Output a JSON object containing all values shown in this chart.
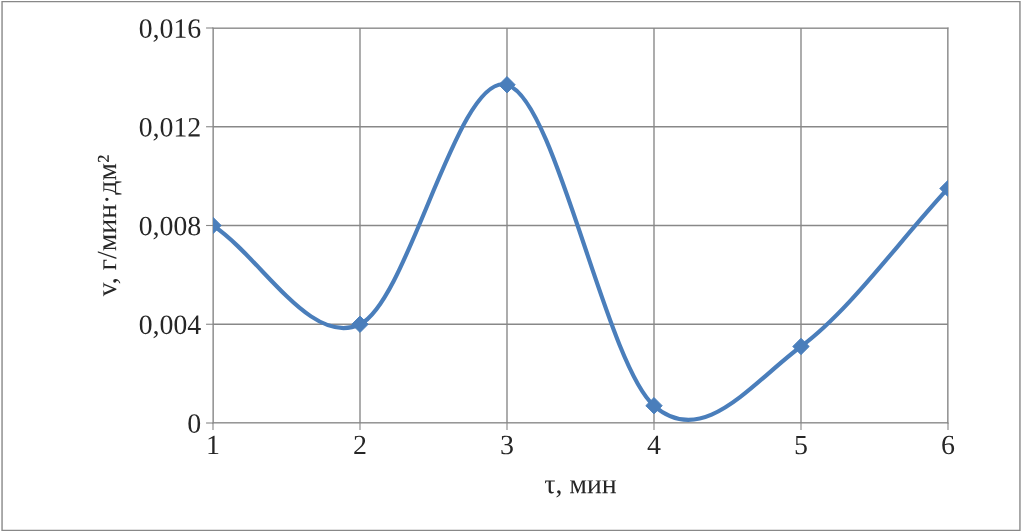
{
  "chart_data": {
    "type": "line",
    "xlabel": "τ, мин",
    "ylabel": "v, г/мин·дм²",
    "x": [
      1,
      2,
      3,
      4,
      5,
      6
    ],
    "series": [
      {
        "color": "#4a7ebb",
        "values": [
          0.008,
          0.004,
          0.0137,
          0.0007,
          0.0031,
          0.0095
        ]
      }
    ],
    "xlim": [
      1,
      6
    ],
    "xticks": [
      1,
      2,
      3,
      4,
      5,
      6
    ],
    "ylim": [
      0,
      0.016
    ],
    "yticks": [
      0,
      {
        "value": 0.004,
        "label": "0,004"
      },
      {
        "value": 0.008,
        "label": "0,008"
      },
      {
        "value": 0.012,
        "label": "0,012"
      },
      {
        "value": 0.016,
        "label": "0,016"
      }
    ],
    "grid": true,
    "marker": "diamond",
    "line_style": "solid"
  }
}
